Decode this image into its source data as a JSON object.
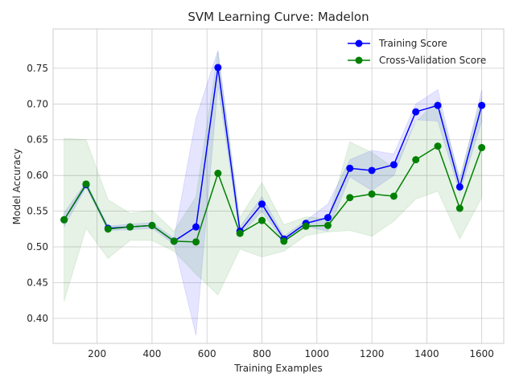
{
  "chart_data": {
    "type": "line",
    "title": "SVM Learning Curve: Madelon",
    "xlabel": "Training Examples",
    "ylabel": "Model Accuracy",
    "xlim": [
      40,
      1680
    ],
    "ylim": [
      0.365,
      0.805
    ],
    "xticks": [
      200,
      400,
      600,
      800,
      1000,
      1200,
      1400,
      1600
    ],
    "yticks": [
      0.4,
      0.45,
      0.5,
      0.55,
      0.6,
      0.65,
      0.7,
      0.75
    ],
    "grid": true,
    "legend_position": "top-right",
    "x": [
      80,
      160,
      240,
      320,
      400,
      480,
      560,
      640,
      720,
      800,
      880,
      960,
      1040,
      1120,
      1200,
      1280,
      1360,
      1440,
      1520,
      1600
    ],
    "series": [
      {
        "name": "Training Score",
        "color": "#0000ff",
        "values": [
          0.538,
          0.587,
          0.526,
          0.528,
          0.53,
          0.508,
          0.528,
          0.751,
          0.522,
          0.56,
          0.511,
          0.533,
          0.541,
          0.61,
          0.607,
          0.615,
          0.689,
          0.698,
          0.584,
          0.698
        ],
        "band_upper": [
          0.548,
          0.59,
          0.529,
          0.532,
          0.534,
          0.512,
          0.68,
          0.775,
          0.528,
          0.57,
          0.515,
          0.537,
          0.56,
          0.622,
          0.635,
          0.63,
          0.7,
          0.72,
          0.592,
          0.72
        ],
        "band_lower": [
          0.528,
          0.584,
          0.523,
          0.524,
          0.526,
          0.504,
          0.376,
          0.727,
          0.516,
          0.55,
          0.507,
          0.529,
          0.522,
          0.598,
          0.579,
          0.6,
          0.678,
          0.676,
          0.576,
          0.676
        ]
      },
      {
        "name": "Cross-Validation Score",
        "color": "#008000",
        "values": [
          0.538,
          0.588,
          0.525,
          0.528,
          0.53,
          0.508,
          0.507,
          0.603,
          0.519,
          0.537,
          0.508,
          0.529,
          0.53,
          0.569,
          0.574,
          0.571,
          0.622,
          0.641,
          0.554,
          0.639
        ],
        "band_upper": [
          0.652,
          0.65,
          0.566,
          0.547,
          0.551,
          0.522,
          0.57,
          0.773,
          0.541,
          0.59,
          0.531,
          0.542,
          0.539,
          0.647,
          0.632,
          0.611,
          0.675,
          0.705,
          0.598,
          0.71
        ],
        "band_lower": [
          0.424,
          0.526,
          0.484,
          0.509,
          0.509,
          0.494,
          0.462,
          0.433,
          0.497,
          0.486,
          0.494,
          0.516,
          0.521,
          0.523,
          0.515,
          0.536,
          0.567,
          0.578,
          0.511,
          0.569
        ]
      }
    ]
  }
}
